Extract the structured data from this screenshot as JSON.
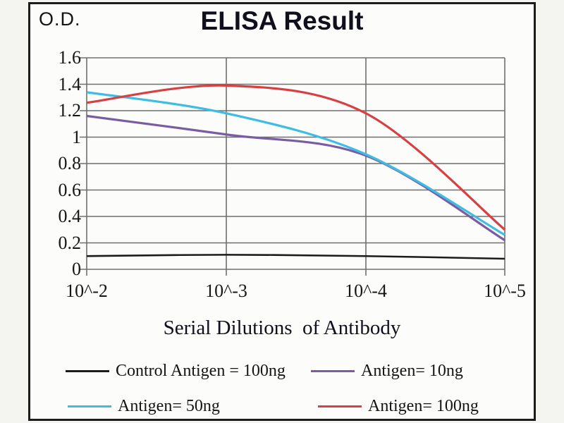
{
  "chart_data": {
    "type": "line",
    "title": "ELISA Result",
    "ylabel": "O.D.",
    "xlabel": "Serial Dilutions  of Antibody",
    "categories": [
      "10^-2",
      "10^-3",
      "10^-4",
      "10^-5"
    ],
    "x_scale_note": "serial dilutions, left=10^-2 to right=10^-5",
    "ylim": [
      0,
      1.6
    ],
    "y_ticks": [
      "0",
      "0.2",
      "0.4",
      "0.6",
      "0.8",
      "1",
      "1.2",
      "1.4",
      "1.6"
    ],
    "grid": true,
    "legend_position": "bottom",
    "series": [
      {
        "name": "Control Antigen = 100ng",
        "color": "#1b1b1b",
        "values": [
          0.1,
          0.11,
          0.1,
          0.08
        ]
      },
      {
        "name": "Antigen= 10ng",
        "color": "#7a5ca3",
        "values": [
          1.16,
          1.02,
          0.86,
          0.22
        ]
      },
      {
        "name": "Antigen= 50ng",
        "color": "#3dbde4",
        "values": [
          1.34,
          1.18,
          0.87,
          0.26
        ]
      },
      {
        "name": "Antigen= 100ng",
        "color": "#d83f42",
        "values": [
          1.26,
          1.39,
          1.18,
          0.3
        ]
      }
    ]
  },
  "colors": {
    "gridline": "#6f6f6f",
    "frame_border": "#1c1c1c",
    "text": "#141414"
  }
}
